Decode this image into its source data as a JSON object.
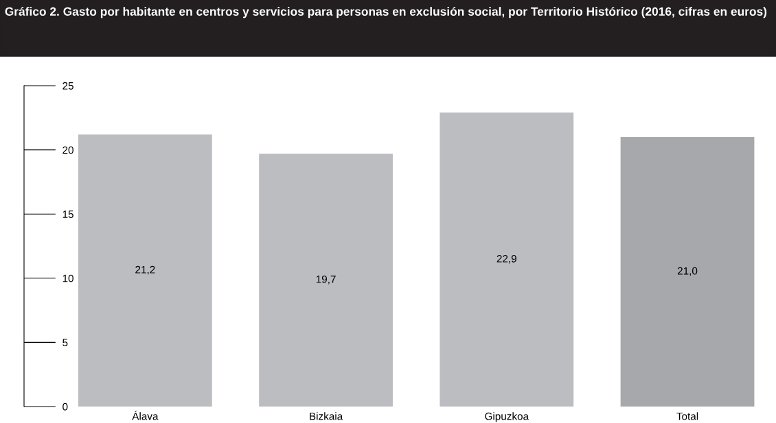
{
  "chart_data": {
    "type": "bar",
    "title": "Gráfico 2. Gasto por habitante en centros y servicios para personas en exclusión social, por Territorio Histórico (2016, cifras en euros)",
    "categories": [
      "Álava",
      "Bizkaia",
      "Gipuzkoa",
      "Total"
    ],
    "values": [
      21.2,
      19.7,
      22.9,
      21.0
    ],
    "colors": [
      "#bcbdc0",
      "#bcbdc0",
      "#bcbdc0",
      "#a7a8ab"
    ],
    "value_labels": [
      "21,2",
      "19,7",
      "22,9",
      "21,0"
    ],
    "ylim": [
      0,
      25
    ],
    "yticks": [
      0,
      5,
      10,
      15,
      20,
      25
    ],
    "grid": false
  }
}
